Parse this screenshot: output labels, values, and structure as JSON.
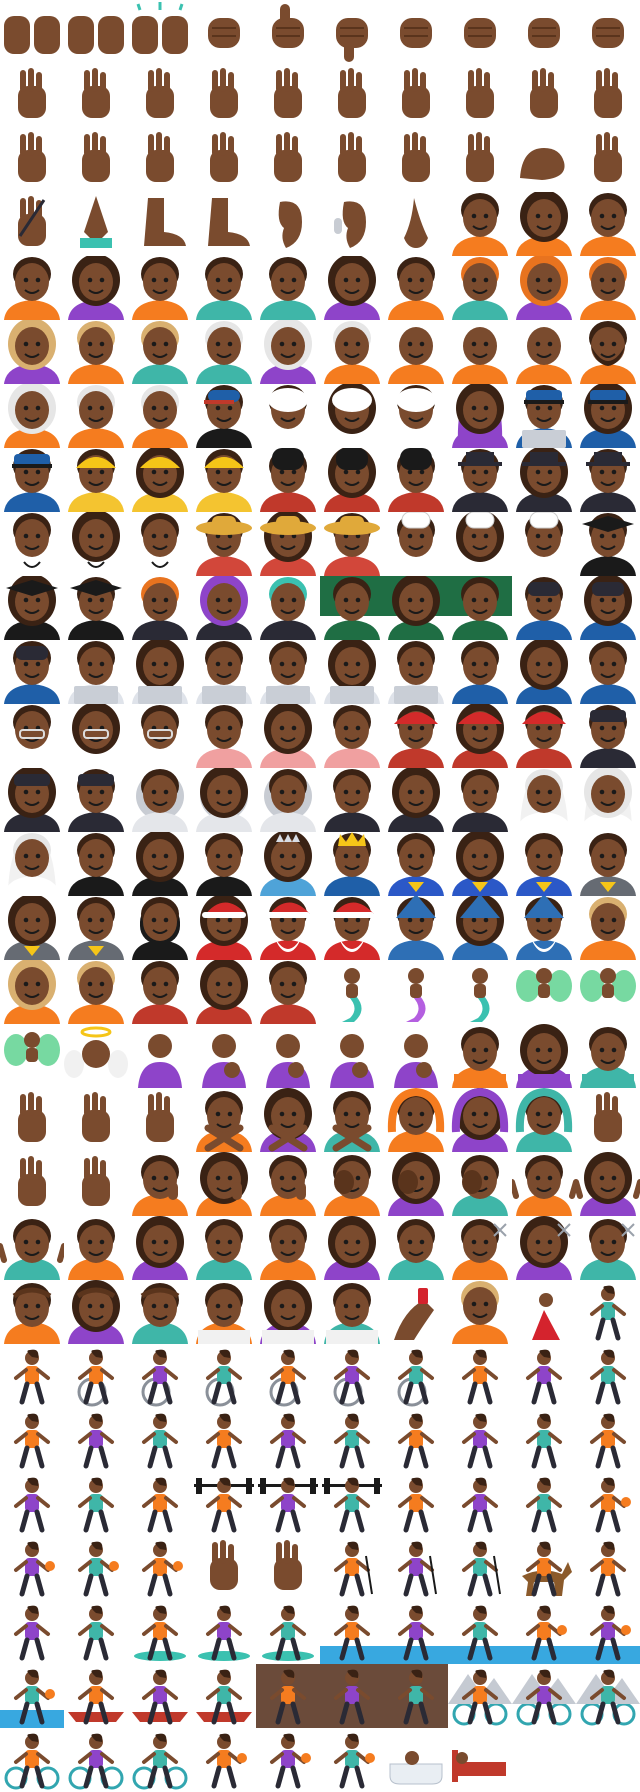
{
  "palette": {
    "skin": "#7a4b2e",
    "skin_dark": "#5a341c",
    "skin_light": "#925c3b",
    "hair": "#3a2214",
    "hair_orange": "#e8731f",
    "hair_blonde": "#d9b070",
    "hair_white": "#e6e6e6",
    "hair_gray": "#9a9a9a",
    "shirt_orange": "#f57c1f",
    "shirt_purple": "#8e44c9",
    "shirt_teal": "#3fb6a8",
    "uniform_blue": "#1f5fa8",
    "helmet_yellow": "#f5c518",
    "vest_yellow": "#f4c430",
    "guard_red": "#c0392b",
    "black": "#1a1a1a",
    "white": "#ffffff",
    "chalkboard": "#1f6e44",
    "laptop": "#c9ced6",
    "suit": "#2a2a35",
    "water": "#38a8e0",
    "hero_blue": "#2b58c7",
    "wizard_blue": "#2e6fb5",
    "fairy_green": "#55d08a",
    "mermaid_teal": "#3bc1b0",
    "mermaid_purple": "#b45fe0",
    "santa_red": "#d42a2a",
    "dress_red": "#d4232d",
    "rock": "#6b4b3a",
    "bike_teal": "#32a6b0",
    "bathtub": "#e9eef3",
    "bed_red": "#c0392b"
  },
  "rows": [
    [
      "palms-up-together",
      "open-hands",
      "raising-hands",
      "clapping-hands",
      "thumbs-up",
      "thumbs-down",
      "raised-fist",
      "oncoming-fist",
      "left-facing-fist",
      "right-facing-fist"
    ],
    [
      "crossed-fingers",
      "victory-hand",
      "love-you-gesture",
      "sign-of-the-horns",
      "ok-hand",
      "pinched-fingers",
      "pinching-hand",
      "backhand-index-left",
      "backhand-index-right",
      "backhand-index-up"
    ],
    [
      "backhand-index-down",
      "index-pointing-up",
      "raised-back-of-hand",
      "raised-hand",
      "hand-fingers-splayed",
      "vulcan-salute",
      "waving-hand",
      "call-me-hand",
      "flexed-biceps",
      "middle-finger"
    ],
    [
      "writing-hand",
      "folded-hands",
      "foot",
      "leg",
      "ear",
      "ear-with-hearing-aid",
      "nose",
      "baby",
      "girl",
      "child"
    ],
    [
      "boy",
      "woman-face",
      "person-face",
      "man-face",
      "man-curly-hair",
      "woman-curly-hair",
      "person-curly-hair",
      "man-red-hair",
      "woman-red-hair",
      "person-red-hair"
    ],
    [
      "woman-blond-hair",
      "person-blond-hair",
      "man-blond-hair",
      "man-white-hair",
      "woman-white-hair",
      "person-white-hair",
      "bald-man",
      "bald-woman",
      "bald-person",
      "bearded-person"
    ],
    [
      "older-woman",
      "older-person",
      "older-man",
      "man-with-cap",
      "person-turban",
      "woman-turban",
      "man-turban",
      "woman-headscarf",
      "police-officer",
      "woman-police"
    ],
    [
      "man-police",
      "construction-worker",
      "woman-construction",
      "man-construction",
      "guard",
      "woman-guard",
      "man-guard",
      "detective",
      "woman-detective",
      "man-detective"
    ],
    [
      "health-worker",
      "woman-health",
      "man-health",
      "farmer",
      "woman-farmer",
      "man-farmer",
      "cook",
      "woman-cook",
      "man-cook",
      "graduate"
    ],
    [
      "woman-graduate",
      "man-graduate",
      "singer",
      "woman-singer",
      "man-singer",
      "teacher",
      "woman-teacher",
      "man-teacher",
      "factory-worker",
      "woman-factory"
    ],
    [
      "man-factory",
      "office-worker",
      "woman-office",
      "man-office",
      "technologist",
      "woman-technologist",
      "man-technologist",
      "mechanic",
      "woman-mechanic",
      "man-mechanic"
    ],
    [
      "scientist",
      "woman-scientist",
      "man-scientist",
      "artist",
      "woman-artist",
      "man-artist",
      "firefighter",
      "woman-firefighter",
      "man-firefighter",
      "pilot"
    ],
    [
      "woman-pilot",
      "man-pilot",
      "astronaut",
      "woman-astronaut",
      "man-astronaut",
      "judge",
      "woman-judge",
      "man-judge",
      "person-veil",
      "woman-veil"
    ],
    [
      "man-veil",
      "person-tuxedo",
      "woman-tuxedo",
      "man-tuxedo",
      "princess",
      "prince",
      "superhero",
      "woman-superhero",
      "man-superhero",
      "supervillain"
    ],
    [
      "woman-supervillain",
      "man-supervillain",
      "ninja",
      "mrs-claus",
      "mx-claus",
      "santa-claus",
      "mage",
      "woman-mage",
      "man-mage",
      "elf"
    ],
    [
      "woman-elf",
      "man-elf",
      "vampire",
      "woman-vampire",
      "man-vampire",
      "merperson",
      "mermaid",
      "merman",
      "fairy",
      "woman-fairy"
    ],
    [
      "man-fairy",
      "baby-angel",
      "pregnant-woman",
      "breast-feeding",
      "woman-feeding-baby",
      "man-feeding-baby",
      "person-feeding-baby",
      "person-bowing",
      "woman-bowing",
      "man-bowing"
    ],
    [
      "person-tipping-hand",
      "woman-tipping-hand",
      "man-tipping-hand",
      "person-gesturing-no",
      "woman-gesturing-no",
      "man-gesturing-no",
      "person-gesturing-ok",
      "woman-gesturing-ok",
      "man-gesturing-ok",
      "person-raising-hand"
    ],
    [
      "woman-raising-hand",
      "man-raising-hand",
      "deaf-person",
      "deaf-woman",
      "deaf-man",
      "person-facepalming",
      "woman-facepalming",
      "man-facepalming",
      "person-shrugging",
      "woman-shrugging"
    ],
    [
      "man-shrugging",
      "person-pouting",
      "woman-pouting",
      "man-pouting",
      "person-frowning",
      "woman-frowning",
      "man-frowning",
      "person-haircut",
      "woman-haircut",
      "man-haircut"
    ],
    [
      "person-massage",
      "woman-massage",
      "man-massage",
      "person-steamy-room",
      "woman-steamy-room",
      "man-steamy-room",
      "nail-polish",
      "selfie",
      "woman-dancing",
      "man-in-suit-levitating"
    ],
    [
      "person-standing",
      "person-manual-wheelchair",
      "woman-manual-wheelchair",
      "man-manual-wheelchair",
      "person-motorized-wheelchair",
      "woman-motorized-wheelchair",
      "man-motorized-wheelchair",
      "person-walking",
      "woman-walking",
      "man-walking"
    ],
    [
      "person-white-cane",
      "woman-white-cane",
      "man-white-cane",
      "person-kneeling",
      "woman-kneeling",
      "man-kneeling",
      "person-running",
      "woman-running",
      "man-running",
      "person-standing-2"
    ],
    [
      "woman-standing",
      "man-standing",
      "snowboarder",
      "person-lifting-weights",
      "woman-lifting-weights",
      "man-lifting-weights",
      "person-cartwheeling",
      "woman-cartwheeling",
      "man-cartwheeling",
      "person-juggling"
    ],
    [
      "woman-bouncing-ball",
      "man-bouncing-ball",
      "person-bouncing-ball",
      "woman-playing-handball",
      "man-playing-handball",
      "person-golfing",
      "woman-golfing",
      "man-golfing",
      "horse-racing",
      "person-lotus-position"
    ],
    [
      "woman-lotus-position",
      "man-lotus-position",
      "person-surfing",
      "woman-surfing",
      "man-surfing",
      "person-swimming",
      "woman-swimming",
      "man-swimming",
      "person-water-polo",
      "woman-water-polo"
    ],
    [
      "man-water-polo",
      "person-rowing-boat",
      "woman-rowing-boat",
      "man-rowing-boat",
      "person-climbing",
      "woman-climbing",
      "man-climbing",
      "person-mountain-biking",
      "woman-mountain-biking",
      "man-mountain-biking"
    ],
    [
      "person-biking",
      "woman-biking",
      "man-biking",
      "person-juggling-2",
      "woman-juggling",
      "man-juggling",
      "person-bath",
      "person-in-bed"
    ]
  ]
}
